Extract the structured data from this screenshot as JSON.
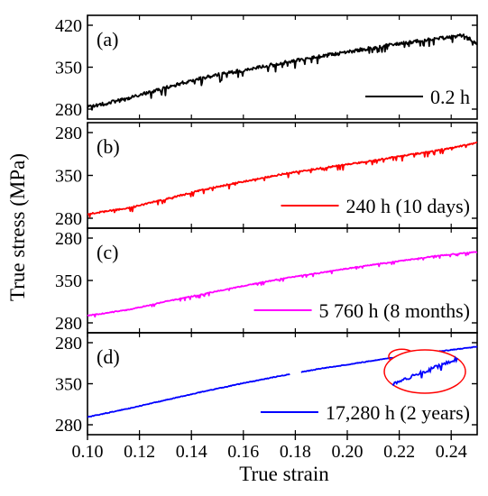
{
  "chart_data": {
    "type": "line",
    "layout": "stacked-panels",
    "xlabel": "True strain",
    "ylabel": "True stress (MPa)",
    "xlim": [
      0.1,
      0.25
    ],
    "xticks": [
      "0.10",
      "0.12",
      "0.14",
      "0.16",
      "0.18",
      "0.20",
      "0.22",
      "0.24"
    ],
    "xtick_values": [
      0.1,
      0.12,
      0.14,
      0.16,
      0.18,
      0.2,
      0.22,
      0.24
    ],
    "ylim": [
      280,
      420
    ],
    "legend_position": "bottom-right",
    "panels": [
      {
        "label": "(a)",
        "yticks": [
          "420",
          "350",
          "280"
        ],
        "series": [
          {
            "name": "0.2 h",
            "color": "#000000",
            "x": [
              0.1,
              0.115,
              0.13,
              0.145,
              0.16,
              0.175,
              0.19,
              0.205,
              0.22,
              0.235,
              0.245,
              0.25
            ],
            "y": [
              283,
              297,
              316,
              333,
              345,
              357,
              368,
              379,
              389,
              398,
              403,
              389
            ],
            "serration_amplitude": 8,
            "noise": 3
          }
        ]
      },
      {
        "label": "(b)",
        "yticks": [
          "280",
          "350",
          "280"
        ],
        "series": [
          {
            "name": "240 h (10 days)",
            "color": "#ff0000",
            "x": [
              0.1,
              0.115,
              0.13,
              0.145,
              0.16,
              0.175,
              0.19,
              0.205,
              0.22,
              0.235,
              0.25
            ],
            "y": [
              287,
              296,
              311,
              327,
              340,
              352,
              362,
              371,
              381,
              391,
              403
            ],
            "serration_amplitude": 5,
            "noise": 1.2
          }
        ]
      },
      {
        "label": "(c)",
        "yticks": [
          "280",
          "350",
          "280"
        ],
        "series": [
          {
            "name": "5 760 h (8 months)",
            "color": "#ff00ff",
            "x": [
              0.1,
              0.115,
              0.13,
              0.145,
              0.16,
              0.175,
              0.19,
              0.205,
              0.22,
              0.235,
              0.25
            ],
            "y": [
              292,
              301,
              315,
              328,
              341,
              353,
              363,
              373,
              382,
              391,
              397
            ],
            "serration_amplitude": 3,
            "noise": 0.8
          }
        ]
      },
      {
        "label": "(d)",
        "yticks": [
          "280",
          "350",
          "280"
        ],
        "series": [
          {
            "name": "17,280 h (2 years)",
            "color": "#0000ff",
            "x": [
              0.1,
              0.115,
              0.13,
              0.145,
              0.16,
              0.175,
              0.19,
              0.205,
              0.22,
              0.235,
              0.25
            ],
            "y": [
              293,
              307,
              322,
              337,
              351,
              364,
              376,
              386,
              396,
              405,
              413
            ],
            "serration_amplitude": 0,
            "noise": 0.6,
            "gaps": [
              [
                0.178,
                0.182
              ]
            ]
          }
        ],
        "inset_zoom": {
          "x_range": [
            0.217,
            0.225
          ],
          "color": "#ff0000"
        }
      }
    ]
  }
}
